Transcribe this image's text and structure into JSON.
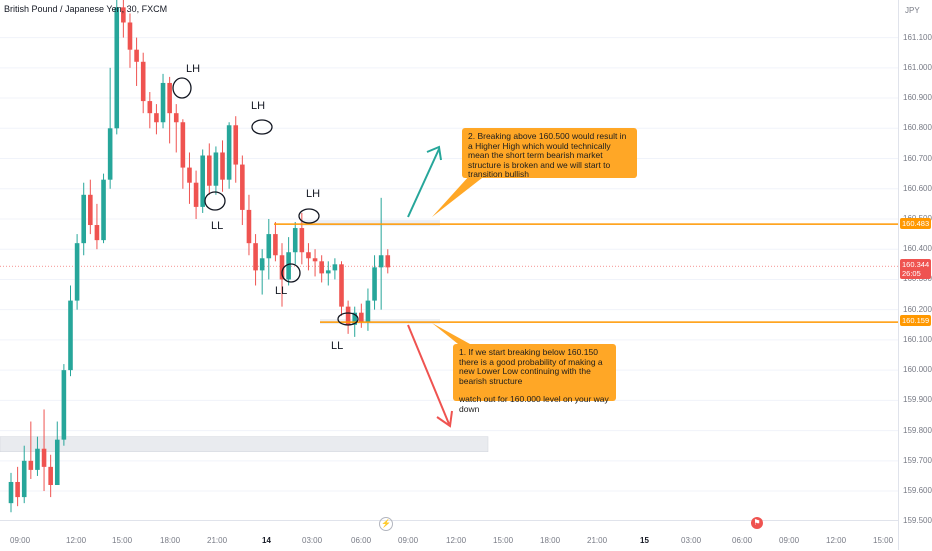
{
  "title": "British Pound / Japanese Yen, 30, FXCM",
  "currency": "JPY",
  "colors": {
    "up": "#26a69a",
    "down": "#ef5350",
    "orange": "#ff9800",
    "callout_bg": "#ffa726",
    "teal_arrow": "#26a69a",
    "red_arrow": "#ef5350",
    "last_price": "#ef5350"
  },
  "price_axis": {
    "ticks": [
      "161.100",
      "161.000",
      "160.900",
      "160.800",
      "160.700",
      "160.600",
      "160.500",
      "160.400",
      "160.300",
      "160.200",
      "160.100",
      "160.000",
      "159.900",
      "159.800",
      "159.700",
      "159.600",
      "159.500"
    ],
    "level_tags": {
      "upper": "160.483",
      "lower": "160.159",
      "last_price": "160.344",
      "countdown": "26:05"
    }
  },
  "time_axis": {
    "labels": [
      "09:00",
      "12:00",
      "15:00",
      "18:00",
      "21:00",
      "14",
      "03:00",
      "06:00",
      "09:00",
      "12:00",
      "15:00",
      "18:00",
      "21:00",
      "15",
      "03:00",
      "06:00",
      "09:00",
      "12:00",
      "15:00"
    ]
  },
  "structure_labels": [
    "LH",
    "LH",
    "LH",
    "LL",
    "LL",
    "LL"
  ],
  "callouts": {
    "bullish": "2. Breaking above 160.500 would result in a Higher High which would technically mean the short term bearish market structure is broken and we will start to transition bullish",
    "bearish_line1": "1. If we start breaking below 160.150 there is a good probability of making a new Lower Low continuing with the bearish structure",
    "bearish_line2": "watch out for 160.000 level on your way down"
  },
  "icons": {
    "time_marker": "lightning-icon",
    "event_marker": "calendar-flag-icon"
  },
  "chart_data": {
    "type": "candlestick",
    "title": "British Pound / Japanese Yen, 30, FXCM",
    "interval": "30",
    "y_axis_unit": "JPY",
    "ylim": [
      159.46,
      161.24
    ],
    "levels": {
      "resistance": 160.483,
      "support": 160.159,
      "last": 160.344,
      "zone_low": [
        159.73,
        159.78
      ]
    },
    "candles": [
      [
        159.56,
        159.63,
        159.53,
        159.66
      ],
      [
        159.63,
        159.58,
        159.55,
        159.68
      ],
      [
        159.58,
        159.7,
        159.56,
        159.75
      ],
      [
        159.7,
        159.67,
        159.64,
        159.83
      ],
      [
        159.67,
        159.74,
        159.65,
        159.78
      ],
      [
        159.74,
        159.68,
        159.6,
        159.87
      ],
      [
        159.68,
        159.62,
        159.58,
        159.72
      ],
      [
        159.62,
        159.77,
        159.62,
        159.83
      ],
      [
        159.77,
        160.0,
        159.75,
        160.02
      ],
      [
        160.0,
        160.23,
        159.98,
        160.28
      ],
      [
        160.23,
        160.42,
        160.2,
        160.45
      ],
      [
        160.42,
        160.58,
        160.38,
        160.62
      ],
      [
        160.58,
        160.48,
        160.45,
        160.63
      ],
      [
        160.48,
        160.43,
        160.4,
        160.55
      ],
      [
        160.43,
        160.63,
        160.42,
        160.65
      ],
      [
        160.63,
        160.8,
        160.6,
        161.0
      ],
      [
        160.8,
        161.2,
        160.78,
        161.23
      ],
      [
        161.2,
        161.15,
        161.1,
        161.23
      ],
      [
        161.15,
        161.06,
        161.0,
        161.18
      ],
      [
        161.06,
        161.02,
        160.94,
        161.1
      ],
      [
        161.02,
        160.89,
        160.85,
        161.05
      ],
      [
        160.89,
        160.85,
        160.8,
        160.92
      ],
      [
        160.85,
        160.82,
        160.78,
        160.88
      ],
      [
        160.82,
        160.95,
        160.8,
        160.98
      ],
      [
        160.95,
        160.85,
        160.75,
        160.97
      ],
      [
        160.85,
        160.82,
        160.72,
        160.88
      ],
      [
        160.82,
        160.67,
        160.6,
        160.83
      ],
      [
        160.67,
        160.62,
        160.55,
        160.72
      ],
      [
        160.62,
        160.54,
        160.5,
        160.66
      ],
      [
        160.54,
        160.71,
        160.52,
        160.73
      ],
      [
        160.71,
        160.61,
        160.58,
        160.75
      ],
      [
        160.61,
        160.72,
        160.58,
        160.74
      ],
      [
        160.72,
        160.63,
        160.59,
        160.76
      ],
      [
        160.63,
        160.81,
        160.6,
        160.82
      ],
      [
        160.81,
        160.68,
        160.62,
        160.84
      ],
      [
        160.68,
        160.53,
        160.48,
        160.71
      ],
      [
        160.53,
        160.42,
        160.38,
        160.58
      ],
      [
        160.42,
        160.33,
        160.28,
        160.45
      ],
      [
        160.33,
        160.37,
        160.25,
        160.4
      ],
      [
        160.37,
        160.45,
        160.3,
        160.5
      ],
      [
        160.45,
        160.38,
        160.36,
        160.49
      ],
      [
        160.38,
        160.3,
        160.21,
        160.42
      ],
      [
        160.3,
        160.39,
        160.28,
        160.44
      ],
      [
        160.39,
        160.47,
        160.35,
        160.49
      ],
      [
        160.47,
        160.39,
        160.35,
        160.52
      ],
      [
        160.39,
        160.37,
        160.33,
        160.42
      ],
      [
        160.37,
        160.36,
        160.31,
        160.4
      ],
      [
        160.36,
        160.32,
        160.29,
        160.38
      ],
      [
        160.32,
        160.33,
        160.28,
        160.36
      ],
      [
        160.33,
        160.35,
        160.3,
        160.37
      ],
      [
        160.35,
        160.21,
        160.18,
        160.36
      ],
      [
        160.21,
        160.15,
        160.12,
        160.23
      ],
      [
        160.15,
        160.19,
        160.11,
        160.21
      ],
      [
        160.19,
        160.16,
        160.14,
        160.22
      ],
      [
        160.16,
        160.23,
        160.13,
        160.27
      ],
      [
        160.23,
        160.34,
        160.2,
        160.38
      ],
      [
        160.34,
        160.38,
        160.2,
        160.57
      ],
      [
        160.38,
        160.34,
        160.32,
        160.4
      ]
    ]
  }
}
